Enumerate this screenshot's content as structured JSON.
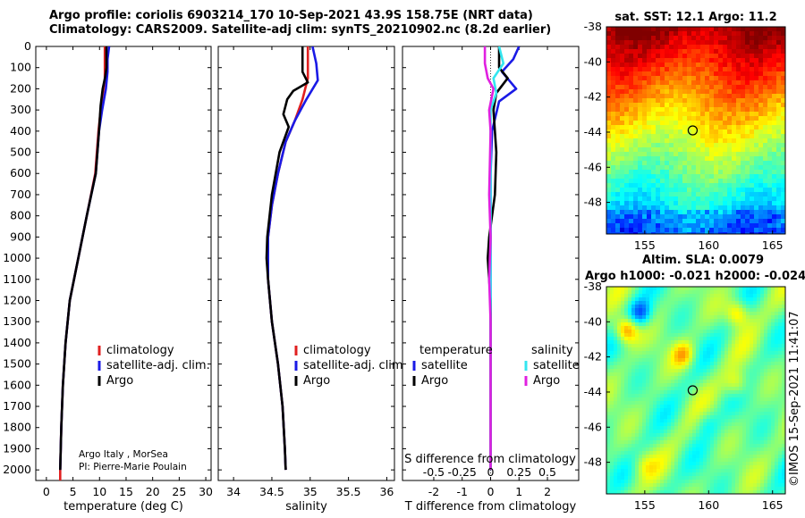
{
  "title_line1": "Argo profile: coriolis 6903214_170 10-Sep-2021 43.9S 158.75E (NRT data)",
  "title_line2": "Climatology: CARS2009. Satellite-adj clim: synTS_20210902.nc (8.2d earlier)",
  "credit": [
    "Argo Italy , MorSea",
    "PI: Pierre-Marie Poulain"
  ],
  "stamp": "©IMOS 15-Sep-2021 11:41:07",
  "colors": {
    "climatology": "#e02020",
    "satellite_adj": "#1a1ae6",
    "argo": "#000000",
    "sat_sal": "#33e6f0",
    "argo_sal": "#e020e0"
  },
  "chart_data": [
    {
      "type": "line",
      "id": "temperature",
      "xlabel": "temperature (deg C)",
      "xlim": [
        -2,
        31
      ],
      "xticks": [
        0,
        5,
        10,
        15,
        20,
        25,
        30
      ],
      "ylim": [
        2050,
        0
      ],
      "yticks": [
        0,
        100,
        200,
        300,
        400,
        500,
        600,
        700,
        800,
        900,
        1000,
        1100,
        1200,
        1300,
        1400,
        1500,
        1600,
        1700,
        1800,
        1900,
        2000
      ],
      "legend": [
        "climatology",
        "satellite-adj. clim.",
        "Argo"
      ],
      "series": [
        {
          "name": "climatology",
          "color": "#e02020",
          "points": [
            [
              11.0,
              0
            ],
            [
              11.0,
              100
            ],
            [
              11.0,
              160
            ],
            [
              10.4,
              260
            ],
            [
              9.8,
              400
            ],
            [
              9.2,
              600
            ],
            [
              7.6,
              800
            ],
            [
              6.0,
              1000
            ],
            [
              4.4,
              1200
            ],
            [
              3.6,
              1400
            ],
            [
              3.1,
              1600
            ],
            [
              2.8,
              1800
            ],
            [
              2.6,
              2000
            ],
            [
              2.6,
              2050
            ]
          ]
        },
        {
          "name": "satellite-adj. clim.",
          "color": "#1a1ae6",
          "points": [
            [
              11.8,
              0
            ],
            [
              11.5,
              60
            ],
            [
              11.5,
              120
            ],
            [
              11.2,
              200
            ],
            [
              10.5,
              300
            ],
            [
              9.9,
              400
            ],
            [
              9.3,
              600
            ],
            [
              7.6,
              800
            ],
            [
              6.0,
              1000
            ],
            [
              4.4,
              1200
            ],
            [
              3.6,
              1400
            ],
            [
              3.1,
              1600
            ],
            [
              2.8,
              1800
            ],
            [
              2.6,
              2000
            ]
          ]
        },
        {
          "name": "Argo",
          "color": "#000000",
          "points": [
            [
              11.3,
              0
            ],
            [
              11.3,
              100
            ],
            [
              11.1,
              140
            ],
            [
              10.6,
              200
            ],
            [
              10.2,
              280
            ],
            [
              9.9,
              400
            ],
            [
              9.3,
              600
            ],
            [
              7.6,
              800
            ],
            [
              6.0,
              1000
            ],
            [
              4.4,
              1200
            ],
            [
              3.6,
              1400
            ],
            [
              3.1,
              1600
            ],
            [
              2.8,
              1800
            ],
            [
              2.6,
              2000
            ]
          ]
        }
      ]
    },
    {
      "type": "line",
      "id": "salinity",
      "xlabel": "salinity",
      "xlim": [
        33.8,
        36.1
      ],
      "xticks": [
        34,
        34.5,
        35,
        35.5,
        36
      ],
      "xticklabels": [
        "34",
        "34.5",
        "35",
        "35.5",
        "36"
      ],
      "ylim": [
        2050,
        0
      ],
      "legend": [
        "climatology",
        "satellite-adj. clim.",
        "Argo"
      ],
      "series": [
        {
          "name": "climatology",
          "color": "#e02020",
          "points": [
            [
              34.97,
              0
            ],
            [
              34.97,
              150
            ],
            [
              34.9,
              250
            ],
            [
              34.8,
              350
            ],
            [
              34.68,
              450
            ],
            [
              34.58,
              600
            ],
            [
              34.5,
              750
            ],
            [
              34.45,
              900
            ],
            [
              34.45,
              1000
            ],
            [
              34.45,
              1100
            ],
            [
              34.5,
              1300
            ],
            [
              34.58,
              1500
            ],
            [
              34.64,
              1700
            ],
            [
              34.67,
              1900
            ],
            [
              34.68,
              2000
            ]
          ]
        },
        {
          "name": "satellite-adj. clim.",
          "color": "#1a1ae6",
          "points": [
            [
              35.03,
              0
            ],
            [
              35.08,
              80
            ],
            [
              35.1,
              160
            ],
            [
              34.95,
              250
            ],
            [
              34.8,
              350
            ],
            [
              34.68,
              450
            ],
            [
              34.58,
              600
            ],
            [
              34.5,
              750
            ],
            [
              34.45,
              900
            ],
            [
              34.45,
              1000
            ],
            [
              34.45,
              1100
            ],
            [
              34.5,
              1300
            ],
            [
              34.58,
              1500
            ],
            [
              34.64,
              1700
            ],
            [
              34.67,
              1900
            ],
            [
              34.68,
              2000
            ]
          ]
        },
        {
          "name": "Argo",
          "color": "#000000",
          "points": [
            [
              34.9,
              0
            ],
            [
              34.9,
              120
            ],
            [
              34.97,
              170
            ],
            [
              34.78,
              210
            ],
            [
              34.7,
              250
            ],
            [
              34.65,
              320
            ],
            [
              34.72,
              380
            ],
            [
              34.6,
              500
            ],
            [
              34.5,
              700
            ],
            [
              34.44,
              900
            ],
            [
              34.43,
              1000
            ],
            [
              34.45,
              1100
            ],
            [
              34.5,
              1300
            ],
            [
              34.58,
              1500
            ],
            [
              34.64,
              1700
            ],
            [
              34.67,
              1900
            ],
            [
              34.68,
              2000
            ]
          ]
        }
      ]
    },
    {
      "type": "line",
      "id": "difference",
      "xlabel": "T difference from climatology",
      "xlabel_top": "S difference from climatology",
      "xlim": [
        -3.1,
        3.1
      ],
      "xticks": [
        -2,
        -1,
        0,
        1,
        2
      ],
      "sticks": [
        "-0.5",
        "-0.25",
        "0",
        "0.25",
        "0.5"
      ],
      "ylim": [
        2050,
        0
      ],
      "legend_temperature": [
        "temperature",
        "satellite",
        "Argo"
      ],
      "legend_salinity": [
        "salinity",
        "satellite",
        "Argo"
      ],
      "series": [
        {
          "name": "satellite",
          "color": "#1a1ae6",
          "points": [
            [
              1.0,
              0
            ],
            [
              0.8,
              60
            ],
            [
              0.4,
              120
            ],
            [
              0.9,
              200
            ],
            [
              0.3,
              260
            ],
            [
              0.05,
              400
            ],
            [
              0.0,
              600
            ],
            [
              0.0,
              1000
            ],
            [
              0.0,
              1400
            ],
            [
              0.0,
              2000
            ]
          ]
        },
        {
          "name": "Argo",
          "color": "#000000",
          "points": [
            [
              0.3,
              0
            ],
            [
              0.3,
              100
            ],
            [
              0.6,
              150
            ],
            [
              0.2,
              220
            ],
            [
              0.1,
              300
            ],
            [
              0.2,
              500
            ],
            [
              0.15,
              700
            ],
            [
              -0.05,
              900
            ],
            [
              -0.1,
              1000
            ],
            [
              0.0,
              1200
            ],
            [
              0.0,
              1600
            ],
            [
              0.0,
              2000
            ]
          ]
        },
        {
          "name": "satellite",
          "color": "#33e6f0",
          "points": [
            [
              0.3,
              0
            ],
            [
              0.45,
              80
            ],
            [
              0.1,
              150
            ],
            [
              0.2,
              220
            ],
            [
              0.0,
              300
            ],
            [
              0.0,
              600
            ],
            [
              0.0,
              1000
            ],
            [
              0.0,
              1400
            ],
            [
              0.0,
              2000
            ]
          ]
        },
        {
          "name": "Argo",
          "color": "#e020e0",
          "points": [
            [
              -0.2,
              0
            ],
            [
              -0.2,
              80
            ],
            [
              -0.1,
              150
            ],
            [
              0.1,
              200
            ],
            [
              -0.05,
              300
            ],
            [
              0.0,
              400
            ],
            [
              -0.05,
              700
            ],
            [
              0.0,
              900
            ],
            [
              -0.05,
              1100
            ],
            [
              0.0,
              1300
            ],
            [
              0.0,
              1600
            ],
            [
              0.0,
              2000
            ]
          ]
        }
      ]
    },
    {
      "type": "heatmap",
      "id": "sst",
      "title": "sat. SST: 12.1 Argo: 11.2",
      "xticks": [
        155,
        160,
        165
      ],
      "yticks": [
        -38,
        -40,
        -42,
        -44,
        -46,
        -48
      ],
      "xlim": [
        152,
        166
      ],
      "ylim": [
        -49.8,
        -38
      ],
      "marker": [
        158.75,
        -43.9
      ]
    },
    {
      "type": "heatmap",
      "id": "sla",
      "title_line1": "Altim. SLA: 0.0079",
      "title_line2": "Argo h1000: -0.021 h2000: -0.024",
      "xticks": [
        155,
        160,
        165
      ],
      "yticks": [
        -38,
        -40,
        -42,
        -44,
        -46,
        -48
      ],
      "xlim": [
        152,
        166
      ],
      "ylim": [
        -49.8,
        -38
      ],
      "marker": [
        158.75,
        -43.9
      ]
    }
  ]
}
